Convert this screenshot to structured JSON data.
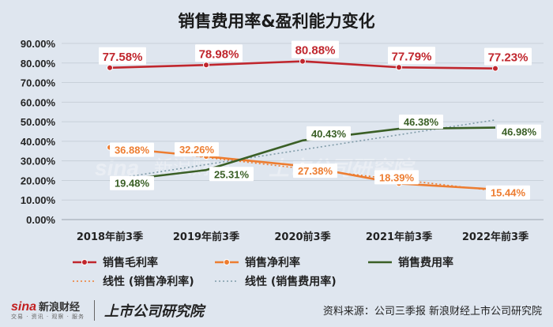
{
  "chart_data": {
    "type": "line",
    "title": "销售费用率&盈利能力变化",
    "categories": [
      "2018年前3季",
      "2019年前3季",
      "2020前3季",
      "2021年前3季",
      "2022年前3季"
    ],
    "ylim": [
      0,
      90
    ],
    "yticks": [
      "0.00%",
      "10.00%",
      "20.00%",
      "30.00%",
      "40.00%",
      "50.00%",
      "60.00%",
      "70.00%",
      "80.00%",
      "90.00%"
    ],
    "grid": true,
    "legend_position": "bottom",
    "series": [
      {
        "name": "销售毛利率",
        "values": [
          77.58,
          78.98,
          80.88,
          77.79,
          77.23
        ],
        "labels": [
          "77.58%",
          "78.98%",
          "80.88%",
          "77.79%",
          "77.23%"
        ],
        "color": "#c0262d",
        "marker": "circle"
      },
      {
        "name": "销售净利率",
        "values": [
          36.88,
          32.26,
          27.38,
          18.39,
          15.44
        ],
        "labels": [
          "36.88%",
          "32.26%",
          "27.38%",
          "18.39%",
          "15.44%"
        ],
        "color": "#ed7d31",
        "marker": "circle"
      },
      {
        "name": "销售费用率",
        "values": [
          19.48,
          25.31,
          40.43,
          46.38,
          46.98
        ],
        "labels": [
          "19.48%",
          "25.31%",
          "40.43%",
          "46.38%",
          "46.98%"
        ],
        "color": "#3a5f26",
        "marker": "none"
      }
    ],
    "trendlines": [
      {
        "name": "线性 (销售净利率)",
        "of": "销售净利率",
        "color": "#ed7d31"
      },
      {
        "name": "线性 (销售费用率)",
        "of": "销售费用率",
        "color": "#7f9ba8"
      }
    ]
  },
  "watermark": {
    "brand": "sina",
    "text": "新浪财经",
    "institute": "上市公司研究院"
  },
  "footer": {
    "logo_brand": "sina",
    "logo_text": "新浪财经",
    "logo_sub": "交易 · 资讯 · 观察 · 服务",
    "logo_institute": "上市公司研究院",
    "source": "资料来源：公司三季报 新浪财经上市公司研究院"
  }
}
